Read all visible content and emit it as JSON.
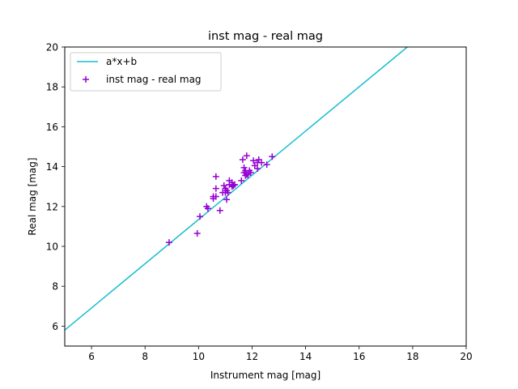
{
  "chart_data": {
    "type": "scatter",
    "title": "inst mag - real mag",
    "xlabel": "Instrument mag [mag]",
    "ylabel": "Real mag [mag]",
    "xlim": [
      5,
      20
    ],
    "ylim": [
      5,
      20
    ],
    "xticks": [
      6,
      8,
      10,
      12,
      14,
      16,
      18,
      20
    ],
    "yticks": [
      6,
      8,
      10,
      12,
      14,
      16,
      18,
      20
    ],
    "grid": false,
    "legend_position": "upper-left",
    "series": [
      {
        "name": "a*x+b",
        "kind": "line",
        "color": "#17becf",
        "x": [
          5,
          17.8
        ],
        "y": [
          5.8,
          20.0
        ]
      },
      {
        "name": "inst mag - real mag",
        "kind": "scatter",
        "marker": "plus",
        "color": "#9400d3",
        "points": [
          [
            8.9,
            10.2
          ],
          [
            9.95,
            10.65
          ],
          [
            10.05,
            11.5
          ],
          [
            10.3,
            12.0
          ],
          [
            10.35,
            11.9
          ],
          [
            10.55,
            12.4
          ],
          [
            10.55,
            12.5
          ],
          [
            10.65,
            12.5
          ],
          [
            10.65,
            12.9
          ],
          [
            10.65,
            13.5
          ],
          [
            10.8,
            11.8
          ],
          [
            10.9,
            12.7
          ],
          [
            10.95,
            13.05
          ],
          [
            11.0,
            12.7
          ],
          [
            11.0,
            12.9
          ],
          [
            11.05,
            12.35
          ],
          [
            11.05,
            12.8
          ],
          [
            11.1,
            12.7
          ],
          [
            11.15,
            13.1
          ],
          [
            11.15,
            13.3
          ],
          [
            11.25,
            13.0
          ],
          [
            11.25,
            13.2
          ],
          [
            11.3,
            13.05
          ],
          [
            11.35,
            13.1
          ],
          [
            11.6,
            13.3
          ],
          [
            11.65,
            14.35
          ],
          [
            11.7,
            13.7
          ],
          [
            11.7,
            13.95
          ],
          [
            11.75,
            13.55
          ],
          [
            11.75,
            13.8
          ],
          [
            11.8,
            13.6
          ],
          [
            11.8,
            14.55
          ],
          [
            11.85,
            13.6
          ],
          [
            11.9,
            13.8
          ],
          [
            11.95,
            13.7
          ],
          [
            12.05,
            14.3
          ],
          [
            12.1,
            14.05
          ],
          [
            12.2,
            13.9
          ],
          [
            12.2,
            14.2
          ],
          [
            12.25,
            14.35
          ],
          [
            12.35,
            14.2
          ],
          [
            12.55,
            14.1
          ],
          [
            12.75,
            14.5
          ]
        ]
      }
    ]
  }
}
